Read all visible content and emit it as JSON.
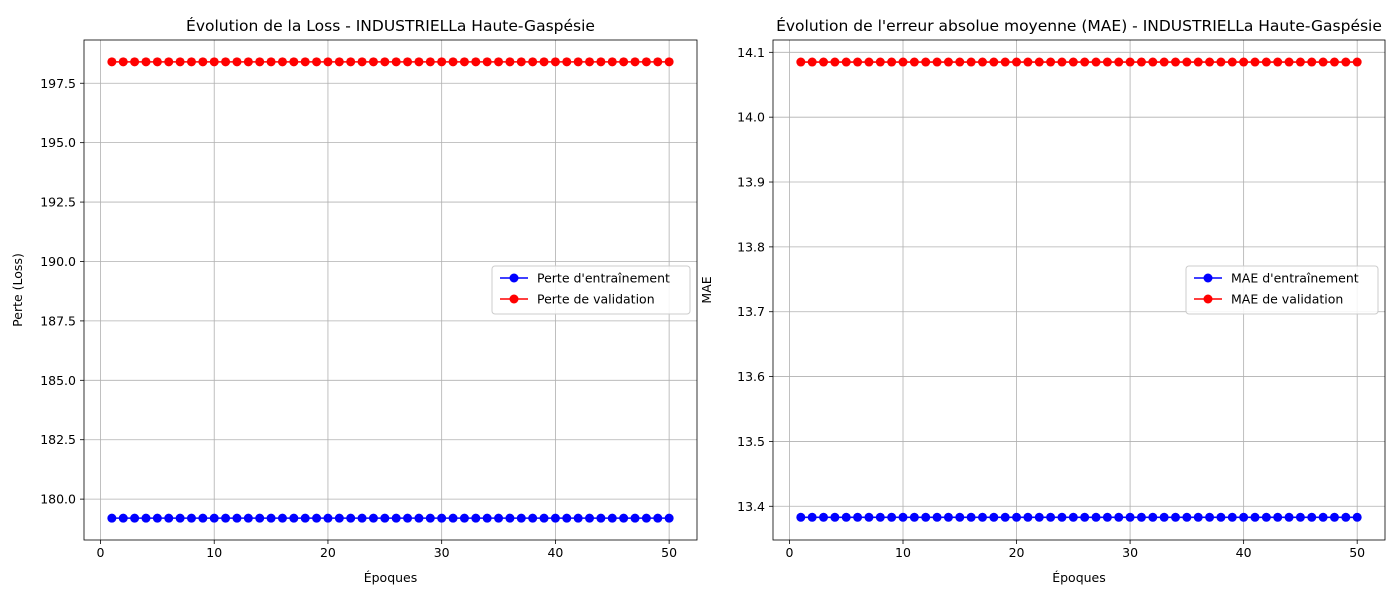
{
  "chart_data": [
    {
      "type": "line",
      "title": "Évolution de la Loss - INDUSTRIELLa Haute-Gaspésie",
      "xlabel": "Époques",
      "ylabel": "Perte (Loss)",
      "xlim": [
        -1.45,
        52.45
      ],
      "ylim": [
        178.28,
        199.32
      ],
      "xticks": [
        0,
        10,
        20,
        30,
        40,
        50
      ],
      "yticks": [
        180.0,
        182.5,
        185.0,
        187.5,
        190.0,
        192.5,
        195.0,
        197.5
      ],
      "ytick_labels": [
        "180.0",
        "182.5",
        "185.0",
        "187.5",
        "190.0",
        "192.5",
        "195.0",
        "197.5"
      ],
      "grid": true,
      "legend_position": "center-right",
      "x": [
        1,
        2,
        3,
        4,
        5,
        6,
        7,
        8,
        9,
        10,
        11,
        12,
        13,
        14,
        15,
        16,
        17,
        18,
        19,
        20,
        21,
        22,
        23,
        24,
        25,
        26,
        27,
        28,
        29,
        30,
        31,
        32,
        33,
        34,
        35,
        36,
        37,
        38,
        39,
        40,
        41,
        42,
        43,
        44,
        45,
        46,
        47,
        48,
        49,
        50
      ],
      "series": [
        {
          "name": "Perte d'entraînement",
          "color": "#0000ff",
          "marker": "circle",
          "value": 179.2
        },
        {
          "name": "Perte de validation",
          "color": "#ff0000",
          "marker": "circle",
          "value": 198.4
        }
      ]
    },
    {
      "type": "line",
      "title": "Évolution de l'erreur absolue moyenne (MAE) - INDUSTRIELLa Haute-Gaspésie",
      "xlabel": "Époques",
      "ylabel": "MAE",
      "xlim": [
        -1.45,
        52.45
      ],
      "ylim": [
        13.348,
        14.119
      ],
      "xticks": [
        0,
        10,
        20,
        30,
        40,
        50
      ],
      "yticks": [
        13.4,
        13.5,
        13.6,
        13.7,
        13.8,
        13.9,
        14.0,
        14.1
      ],
      "ytick_labels": [
        "13.4",
        "13.5",
        "13.6",
        "13.7",
        "13.8",
        "13.9",
        "14.0",
        "14.1"
      ],
      "grid": true,
      "legend_position": "center-right",
      "x": [
        1,
        2,
        3,
        4,
        5,
        6,
        7,
        8,
        9,
        10,
        11,
        12,
        13,
        14,
        15,
        16,
        17,
        18,
        19,
        20,
        21,
        22,
        23,
        24,
        25,
        26,
        27,
        28,
        29,
        30,
        31,
        32,
        33,
        34,
        35,
        36,
        37,
        38,
        39,
        40,
        41,
        42,
        43,
        44,
        45,
        46,
        47,
        48,
        49,
        50
      ],
      "series": [
        {
          "name": "MAE d'entraînement",
          "color": "#0000ff",
          "marker": "circle",
          "value": 13.383
        },
        {
          "name": "MAE de validation",
          "color": "#ff0000",
          "marker": "circle",
          "value": 14.085
        }
      ]
    }
  ]
}
